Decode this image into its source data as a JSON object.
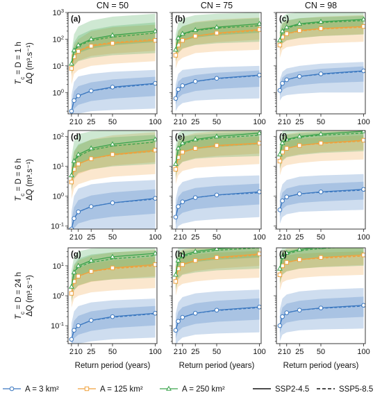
{
  "chart_data": {
    "type": "line",
    "columns": [
      "CN = 50",
      "CN = 75",
      "CN = 98"
    ],
    "rows": [
      {
        "label_html": "T<sub>c</sub> = D = 1 h",
        "label_parts": {
          "T": "T",
          "sub": "c",
          "rest": " = D = 1 h"
        },
        "ylabel": "ΔQ (m³.s⁻¹)",
        "ylim_log10": [
          -0.8,
          3.0
        ],
        "yticks": [
          0,
          1,
          2,
          3
        ]
      },
      {
        "label_parts": {
          "T": "T",
          "sub": "c",
          "rest": " = D = 6 h"
        },
        "ylabel": "ΔQ (m³.s⁻¹)",
        "ylim_log10": [
          -1.1,
          2.2
        ],
        "yticks": [
          -1,
          0,
          1,
          2
        ]
      },
      {
        "label_parts": {
          "T": "T",
          "sub": "c",
          "rest": " = D = 24 h"
        },
        "ylabel": "ΔQ (m³.s⁻¹)",
        "ylim_log10": [
          -1.6,
          1.6
        ],
        "yticks": [
          -1,
          0,
          1
        ]
      }
    ],
    "xlabel": "Return period (years)",
    "x": [
      2,
      5,
      10,
      25,
      50,
      100
    ],
    "xticks": [
      2,
      10,
      25,
      50,
      100
    ],
    "xtick_labels": [
      "2",
      "10",
      "25",
      "50",
      "100"
    ],
    "xlim": [
      -2,
      102
    ],
    "areas": [
      "A = 3 km²",
      "A = 125 km²",
      "A = 250 km²"
    ],
    "area_colors": [
      "#3b78c0",
      "#f0a13c",
      "#3aa34c"
    ],
    "scenarios": [
      "SSP2-4.5",
      "SSP5-8.5"
    ],
    "panels": [
      {
        "label": "(a)",
        "series": [
          {
            "ssp245": [
              0.2,
              0.5,
              0.75,
              1.15,
              1.6,
              2.2
            ],
            "ssp585": [
              0.2,
              0.5,
              0.75,
              1.15,
              1.5,
              2.1
            ],
            "lo": [
              0.06,
              0.12,
              0.16,
              0.2,
              0.22,
              0.25
            ],
            "hi": [
              0.8,
              2.5,
              4,
              5,
              6,
              7
            ]
          },
          {
            "ssp245": [
              8,
              22,
              35,
              55,
              70,
              90
            ],
            "ssp585": [
              8,
              22,
              36,
              60,
              75,
              100
            ],
            "lo": [
              2,
              5,
              7,
              10,
              12,
              15
            ],
            "hi": [
              20,
              60,
              100,
              200,
              280,
              350
            ]
          },
          {
            "ssp245": [
              12,
              38,
              60,
              100,
              140,
              200
            ],
            "ssp585": [
              10,
              35,
              55,
              90,
              120,
              170
            ],
            "lo": [
              5,
              10,
              15,
              20,
              25,
              30
            ],
            "hi": [
              30,
              150,
              300,
              500,
              700,
              900
            ]
          }
        ]
      },
      {
        "label": "(b)",
        "series": [
          {
            "ssp245": [
              0.6,
              1.3,
              1.8,
              2.6,
              3.4,
              4.5
            ],
            "ssp585": [
              0.6,
              1.3,
              1.8,
              2.6,
              3.3,
              4.3
            ],
            "lo": [
              0.2,
              0.3,
              0.4,
              0.5,
              0.55,
              0.6
            ],
            "hi": [
              2,
              5,
              7,
              8,
              9,
              10
            ]
          },
          {
            "ssp245": [
              25,
              60,
              90,
              130,
              170,
              230
            ],
            "ssp585": [
              25,
              60,
              90,
              130,
              160,
              210
            ],
            "lo": [
              8,
              15,
              20,
              30,
              35,
              40
            ],
            "hi": [
              80,
              200,
              300,
              450,
              550,
              650
            ]
          },
          {
            "ssp245": [
              40,
              110,
              160,
              220,
              280,
              380
            ],
            "ssp585": [
              40,
              100,
              150,
              210,
              260,
              320
            ],
            "lo": [
              15,
              30,
              45,
              60,
              70,
              80
            ],
            "hi": [
              150,
              400,
              600,
              800,
              900,
              1000
            ]
          }
        ]
      },
      {
        "label": "(c)",
        "series": [
          {
            "ssp245": [
              1.2,
              2.2,
              3.0,
              4.0,
              5.0,
              6.5
            ],
            "ssp585": [
              1.2,
              2.2,
              3.0,
              4.0,
              4.8,
              6.2
            ],
            "lo": [
              0.5,
              0.7,
              0.8,
              0.9,
              1.0,
              1.0
            ],
            "hi": [
              3,
              6,
              8,
              10,
              12,
              14
            ]
          },
          {
            "ssp245": [
              60,
              120,
              160,
              210,
              250,
              300
            ],
            "ssp585": [
              60,
              120,
              160,
              200,
              240,
              280
            ],
            "lo": [
              20,
              40,
              50,
              60,
              70,
              80
            ],
            "hi": [
              200,
              400,
              500,
              600,
              700,
              800
            ]
          },
          {
            "ssp245": [
              90,
              200,
              280,
              380,
              450,
              550
            ],
            "ssp585": [
              90,
              190,
              260,
              350,
              420,
              500
            ],
            "lo": [
              40,
              70,
              90,
              110,
              130,
              150
            ],
            "hi": [
              300,
              700,
              900,
              1000,
              1000,
              1000
            ]
          }
        ]
      },
      {
        "label": "(d)",
        "series": [
          {
            "ssp245": [
              0.08,
              0.18,
              0.3,
              0.45,
              0.6,
              0.85
            ],
            "ssp585": [
              0.08,
              0.18,
              0.3,
              0.45,
              0.6,
              0.8
            ],
            "lo": [
              0.02,
              0.04,
              0.05,
              0.06,
              0.07,
              0.08
            ],
            "hi": [
              0.3,
              1.0,
              1.8,
              2.5,
              3.0,
              3.5
            ]
          },
          {
            "ssp245": [
              3,
              8,
              12,
              18,
              25,
              35
            ],
            "ssp585": [
              3,
              8,
              12,
              18,
              24,
              32
            ],
            "lo": [
              0.8,
              1.8,
              2.5,
              3.5,
              4.5,
              5.5
            ],
            "hi": [
              10,
              30,
              50,
              80,
              110,
              140
            ]
          },
          {
            "ssp245": [
              5,
              15,
              25,
              40,
              55,
              80
            ],
            "ssp585": [
              5,
              14,
              22,
              35,
              48,
              65
            ],
            "lo": [
              1.5,
              4,
              6,
              8,
              10,
              12
            ],
            "hi": [
              20,
              70,
              120,
              150,
              160,
              160
            ]
          }
        ]
      },
      {
        "label": "(e)",
        "series": [
          {
            "ssp245": [
              0.2,
              0.45,
              0.65,
              0.9,
              1.1,
              1.4
            ],
            "ssp585": [
              0.2,
              0.45,
              0.65,
              0.9,
              1.1,
              1.3
            ],
            "lo": [
              0.06,
              0.1,
              0.12,
              0.15,
              0.17,
              0.2
            ],
            "hi": [
              0.8,
              2.0,
              3.0,
              4.0,
              4.5,
              5.0
            ]
          },
          {
            "ssp245": [
              8,
              20,
              30,
              40,
              50,
              60
            ],
            "ssp585": [
              8,
              20,
              30,
              40,
              48,
              58
            ],
            "lo": [
              2.5,
              5,
              7,
              9,
              10,
              12
            ],
            "hi": [
              30,
              70,
              100,
              130,
              150,
              160
            ]
          },
          {
            "ssp245": [
              12,
              40,
              60,
              80,
              100,
              130
            ],
            "ssp585": [
              12,
              38,
              55,
              75,
              90,
              110
            ],
            "lo": [
              4,
              10,
              14,
              18,
              20,
              22
            ],
            "hi": [
              50,
              130,
              160,
              160,
              160,
              160
            ]
          }
        ]
      },
      {
        "label": "(f)",
        "series": [
          {
            "ssp245": [
              0.35,
              0.7,
              0.95,
              1.2,
              1.4,
              1.7
            ],
            "ssp585": [
              0.35,
              0.7,
              0.95,
              1.2,
              1.35,
              1.6
            ],
            "lo": [
              0.12,
              0.2,
              0.25,
              0.3,
              0.32,
              0.35
            ],
            "hi": [
              1.2,
              2.5,
              3.5,
              4.5,
              5.0,
              5.5
            ]
          },
          {
            "ssp245": [
              15,
              30,
              40,
              50,
              60,
              75
            ],
            "ssp585": [
              15,
              30,
              40,
              50,
              58,
              70
            ],
            "lo": [
              5,
              9,
              11,
              13,
              15,
              17
            ],
            "hi": [
              45,
              90,
              120,
              140,
              150,
              160
            ]
          },
          {
            "ssp245": [
              25,
              60,
              80,
              100,
              120,
              150
            ],
            "ssp585": [
              25,
              55,
              75,
              95,
              110,
              130
            ],
            "lo": [
              8,
              15,
              20,
              24,
              28,
              32
            ],
            "hi": [
              80,
              150,
              160,
              160,
              160,
              160
            ]
          }
        ]
      },
      {
        "label": "(g)",
        "series": [
          {
            "ssp245": [
              0.035,
              0.07,
              0.1,
              0.15,
              0.2,
              0.26
            ],
            "ssp585": [
              0.035,
              0.07,
              0.1,
              0.15,
              0.19,
              0.25
            ],
            "lo": [
              0.012,
              0.02,
              0.025,
              0.03,
              0.035,
              0.04
            ],
            "hi": [
              0.12,
              0.3,
              0.45,
              0.6,
              0.7,
              0.8
            ]
          },
          {
            "ssp245": [
              1.2,
              3,
              4.5,
              6.5,
              8.5,
              11
            ],
            "ssp585": [
              1.2,
              3,
              4.5,
              6.5,
              8,
              10
            ],
            "lo": [
              0.4,
              0.8,
              1.0,
              1.3,
              1.5,
              1.8
            ],
            "hi": [
              4,
              10,
              15,
              22,
              28,
              35
            ]
          },
          {
            "ssp245": [
              2,
              6,
              10,
              15,
              20,
              26
            ],
            "ssp585": [
              2,
              6,
              9,
              13,
              17,
              22
            ],
            "lo": [
              0.6,
              1.5,
              2.2,
              3,
              3.5,
              4
            ],
            "hi": [
              7,
              20,
              30,
              38,
              40,
              40
            ]
          }
        ]
      },
      {
        "label": "(h)",
        "series": [
          {
            "ssp245": [
              0.07,
              0.14,
              0.19,
              0.26,
              0.33,
              0.42
            ],
            "ssp585": [
              0.07,
              0.14,
              0.19,
              0.26,
              0.32,
              0.4
            ],
            "lo": [
              0.02,
              0.03,
              0.04,
              0.05,
              0.055,
              0.06
            ],
            "hi": [
              0.25,
              0.6,
              0.9,
              1.2,
              1.4,
              1.6
            ]
          },
          {
            "ssp245": [
              3,
              8,
              11,
              15,
              19,
              25
            ],
            "ssp585": [
              3,
              8,
              11,
              15,
              18,
              23
            ],
            "lo": [
              1.0,
              2.0,
              2.5,
              3,
              3.5,
              4
            ],
            "hi": [
              10,
              25,
              35,
              40,
              40,
              40
            ]
          },
          {
            "ssp245": [
              5,
              15,
              22,
              30,
              37,
              45
            ],
            "ssp585": [
              5,
              14,
              20,
              27,
              33,
              40
            ],
            "lo": [
              1.5,
              3.5,
              5,
              6,
              7,
              8
            ],
            "hi": [
              18,
              40,
              40,
              40,
              40,
              40
            ]
          }
        ]
      },
      {
        "label": "(i)",
        "series": [
          {
            "ssp245": [
              0.1,
              0.2,
              0.27,
              0.33,
              0.39,
              0.48
            ],
            "ssp585": [
              0.1,
              0.2,
              0.27,
              0.33,
              0.38,
              0.45
            ],
            "lo": [
              0.03,
              0.05,
              0.06,
              0.07,
              0.075,
              0.08
            ],
            "hi": [
              0.35,
              0.8,
              1.1,
              1.4,
              1.6,
              1.8
            ]
          },
          {
            "ssp245": [
              5,
              10,
              13,
              16,
              19,
              23
            ],
            "ssp585": [
              5,
              10,
              13,
              16,
              18,
              21
            ],
            "lo": [
              1.5,
              2.8,
              3.3,
              4,
              4.5,
              5
            ],
            "hi": [
              16,
              30,
              38,
              40,
              40,
              40
            ]
          },
          {
            "ssp245": [
              8,
              20,
              27,
              35,
              42,
              50
            ],
            "ssp585": [
              8,
              18,
              25,
              32,
              38,
              45
            ],
            "lo": [
              2.5,
              5,
              6.5,
              8,
              9,
              10
            ],
            "hi": [
              28,
              40,
              40,
              40,
              40,
              40
            ]
          }
        ]
      }
    ],
    "legend": [
      {
        "label": "A = 3 km²",
        "marker": "circle",
        "color": "#3b78c0"
      },
      {
        "label": "A = 125 km²",
        "marker": "square",
        "color": "#f0a13c"
      },
      {
        "label": "A = 250 km²",
        "marker": "triangle",
        "color": "#3aa34c"
      },
      {
        "label": "SSP2-4.5",
        "style": "solid",
        "color": "#111111"
      },
      {
        "label": "SSP5-8.5",
        "style": "dashed",
        "color": "#111111"
      }
    ],
    "legend_position": "bottom",
    "grid": false
  }
}
